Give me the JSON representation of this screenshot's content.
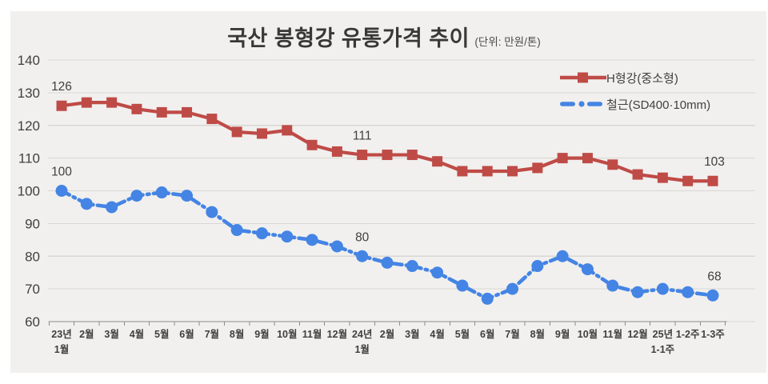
{
  "title": "국산 봉형강 유통가격 추이",
  "subtitle": "(단위: 만원/톤)",
  "legend": [
    {
      "label": "H형강(중소형)",
      "color": "#bf4b47",
      "marker": "square",
      "dashed": false
    },
    {
      "label": "철근(SD400·10mm)",
      "color": "#4484e4",
      "marker": "circle",
      "dashed": true
    }
  ],
  "chart_data": {
    "type": "line",
    "title": "국산 봉형강 유통가격 추이",
    "unit_note": "(단위: 만원/톤)",
    "grid": "horizontal",
    "legend_position": "top-right",
    "ylim": [
      60,
      140
    ],
    "yticks": [
      "140",
      "130",
      "120",
      "110",
      "100",
      "90",
      "80",
      "70",
      "60"
    ],
    "categories": [
      "23년 1월",
      "2월",
      "3월",
      "4월",
      "5월",
      "6월",
      "7월",
      "8월",
      "9월",
      "10월",
      "11월",
      "12월",
      "24년 1월",
      "2월",
      "3월",
      "4월",
      "5월",
      "6월",
      "7월",
      "8월",
      "9월",
      "10월",
      "11월",
      "12월",
      "25년 1-1주",
      "1-2주",
      "1-3주"
    ],
    "categories_display": [
      [
        "23년",
        "1월"
      ],
      [
        "2월"
      ],
      [
        "3월"
      ],
      [
        "4월"
      ],
      [
        "5월"
      ],
      [
        "6월"
      ],
      [
        "7월"
      ],
      [
        "8월"
      ],
      [
        "9월"
      ],
      [
        "10월"
      ],
      [
        "11월"
      ],
      [
        "12월"
      ],
      [
        "24년",
        "1월"
      ],
      [
        "2월"
      ],
      [
        "3월"
      ],
      [
        "4월"
      ],
      [
        "5월"
      ],
      [
        "6월"
      ],
      [
        "7월"
      ],
      [
        "8월"
      ],
      [
        "9월"
      ],
      [
        "10월"
      ],
      [
        "11월"
      ],
      [
        "12월"
      ],
      [
        "25년",
        "1-1주"
      ],
      [
        "1-2주"
      ],
      [
        "1-3주"
      ]
    ],
    "series": [
      {
        "name": "H형강(중소형)",
        "color": "#bf4b47",
        "marker": "square",
        "dashed": false,
        "values": [
          126,
          127,
          127,
          125,
          124,
          124,
          122,
          118,
          117.5,
          118.5,
          114,
          112,
          111,
          111,
          111,
          109,
          106,
          106,
          106,
          107,
          110,
          110,
          108,
          105,
          104,
          103,
          103
        ],
        "point_labels": {
          "0": "126",
          "12": "111",
          "26": "103"
        }
      },
      {
        "name": "철근(SD400·10mm)",
        "color": "#4484e4",
        "marker": "circle",
        "dashed": true,
        "values": [
          100,
          96,
          95,
          98.5,
          99.5,
          98.5,
          93.5,
          88,
          87,
          86,
          85,
          83,
          80,
          78,
          77,
          75,
          71,
          67,
          70,
          77,
          80,
          76,
          71,
          69,
          70,
          69,
          68
        ],
        "point_labels": {
          "0": "100",
          "12": "80",
          "26": "68"
        }
      }
    ]
  }
}
